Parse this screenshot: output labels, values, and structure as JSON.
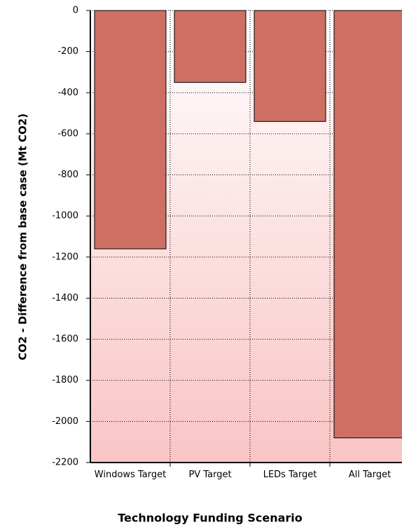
{
  "chart_data": {
    "type": "bar",
    "x_label": "Technology Funding Scenario",
    "y_label": "CO2 - Difference from base case (Mt CO2)",
    "categories": [
      "Windows Target",
      "PV Target",
      "LEDs Target",
      "All Target"
    ],
    "values": [
      -1160,
      -350,
      -540,
      -2080
    ],
    "color": "#cd6f63",
    "ylim": [
      -2200,
      0
    ],
    "yticks": [
      0,
      -200,
      -400,
      -600,
      -800,
      -1000,
      -1200,
      -1400,
      -1600,
      -1800,
      -2000,
      -2200
    ],
    "grid": true
  }
}
